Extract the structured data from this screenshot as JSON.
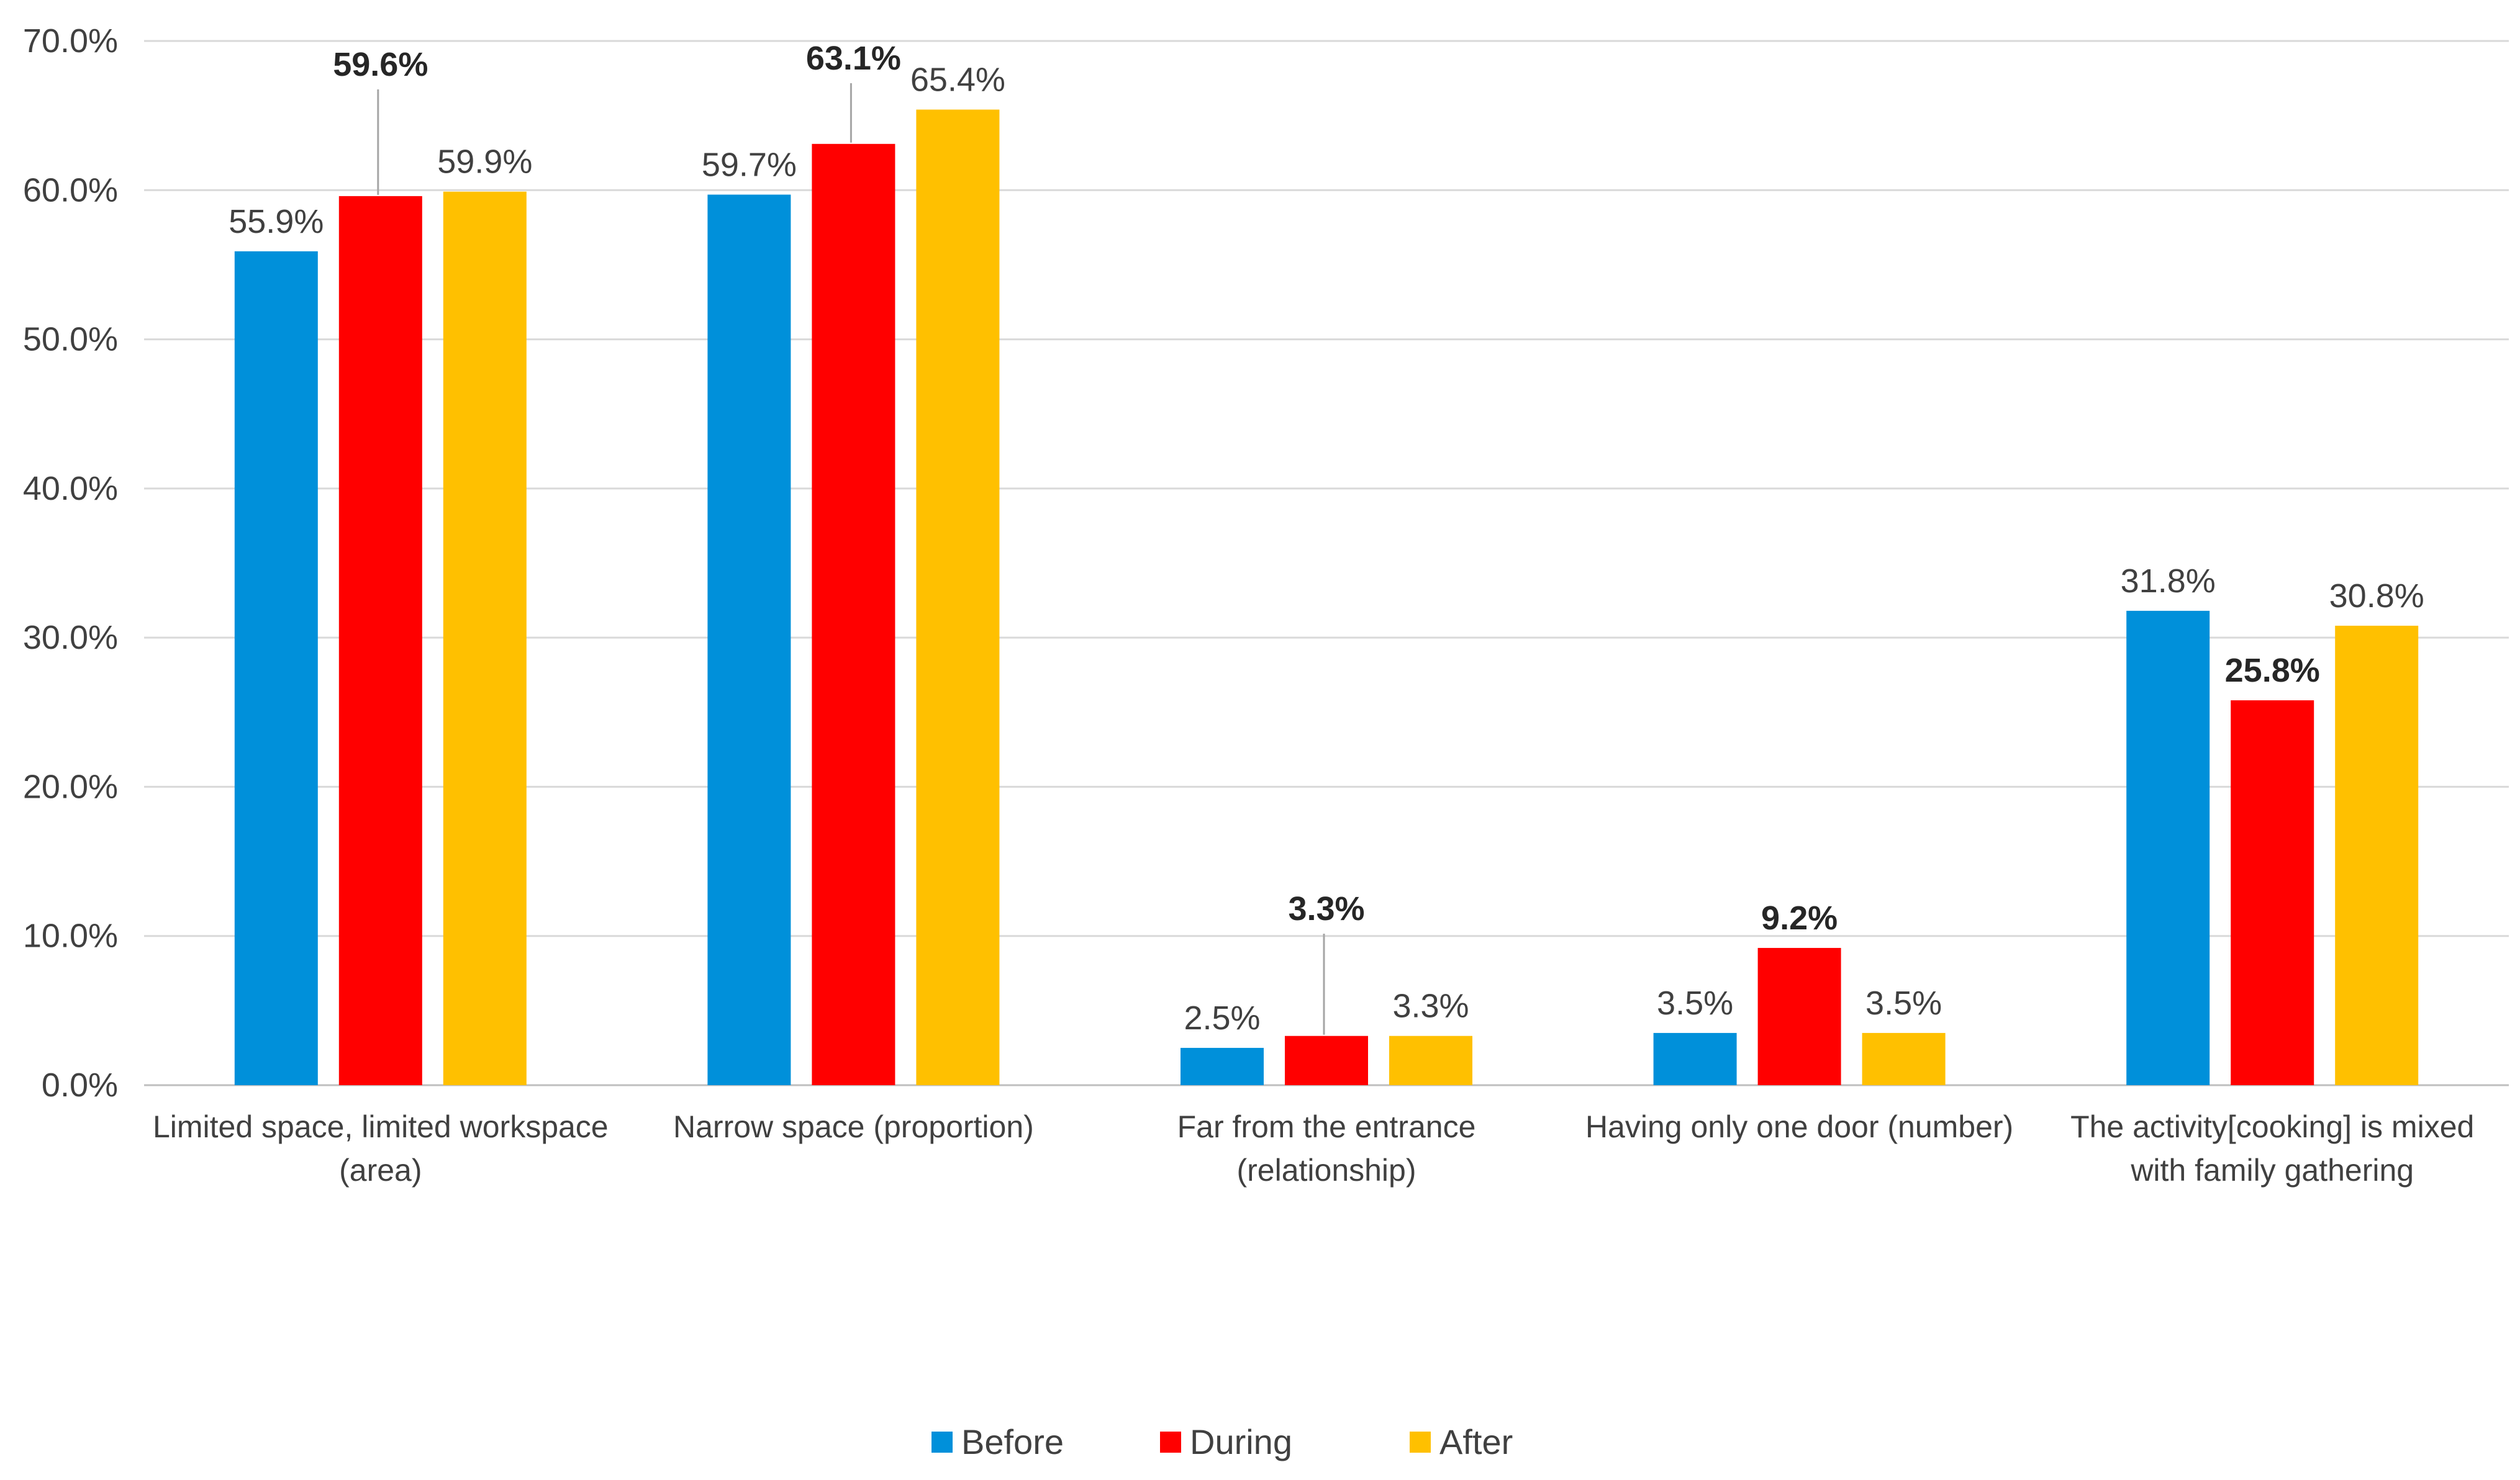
{
  "chart_data": {
    "type": "bar",
    "title": "",
    "xlabel": "",
    "ylabel": "",
    "ylim": [
      0,
      70
    ],
    "y_ticks": [
      "0.0%",
      "10.0%",
      "20.0%",
      "30.0%",
      "40.0%",
      "50.0%",
      "60.0%",
      "70.0%"
    ],
    "grid": true,
    "legend_position": "bottom",
    "categories": [
      [
        "Limited space, limited workspace",
        "(area)"
      ],
      [
        "Narrow space (proportion)"
      ],
      [
        "Far from the entrance",
        "(relationship)"
      ],
      [
        "Having only one door (number)"
      ],
      [
        "The activity[cooking] is mixed",
        "with family gathering"
      ]
    ],
    "series": [
      {
        "name": "Before",
        "color": "#0090DA",
        "values": [
          55.9,
          59.7,
          2.5,
          3.5,
          31.8
        ],
        "labels": [
          "55.9%",
          "59.7%",
          "2.5%",
          "3.5%",
          "31.8%"
        ],
        "bold": [
          false,
          false,
          false,
          false,
          false
        ]
      },
      {
        "name": "During",
        "color": "#FF0000",
        "values": [
          59.6,
          63.1,
          3.3,
          9.2,
          25.8
        ],
        "labels": [
          "59.6%",
          "63.1%",
          "3.3%",
          "9.2%",
          "25.8%"
        ],
        "bold": [
          true,
          true,
          true,
          true,
          true
        ]
      },
      {
        "name": "After",
        "color": "#FFC000",
        "values": [
          59.9,
          65.4,
          3.3,
          3.5,
          30.8
        ],
        "labels": [
          "59.9%",
          "65.4%",
          "3.3%",
          "3.5%",
          "30.8%"
        ],
        "bold": [
          false,
          false,
          false,
          false,
          false
        ]
      }
    ]
  }
}
